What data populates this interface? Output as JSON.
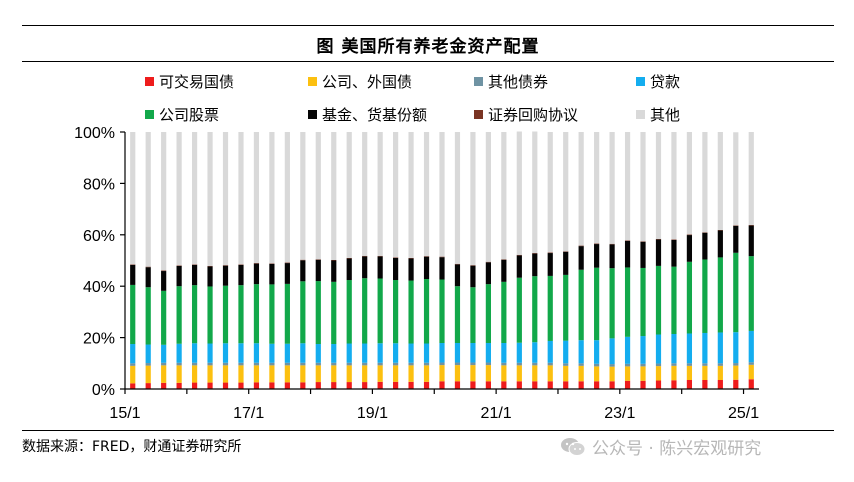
{
  "chart_data": {
    "type": "bar",
    "stacked": true,
    "title": "图  美国所有养老金资产配置",
    "x_tick_labels": [
      "15/1",
      "17/1",
      "19/1",
      "21/1",
      "23/1",
      "25/1"
    ],
    "y_tick_labels": [
      "0%",
      "20%",
      "40%",
      "60%",
      "80%",
      "100%"
    ],
    "ylim": [
      0,
      100
    ],
    "grid": false,
    "legend_position": "top",
    "colors": [
      "#ee1c1c",
      "#fcc010",
      "#6f93a3",
      "#14adef",
      "#12a84a",
      "#050505",
      "#7a3423",
      "#d9d9d9"
    ],
    "categories": [
      "15/1",
      "15/2",
      "15/3",
      "15/4",
      "16/1",
      "16/2",
      "16/3",
      "16/4",
      "17/1",
      "17/2",
      "17/3",
      "17/4",
      "18/1",
      "18/2",
      "18/3",
      "18/4",
      "19/1",
      "19/2",
      "19/3",
      "19/4",
      "20/1",
      "20/2",
      "20/3",
      "20/4",
      "21/1",
      "21/2",
      "21/3",
      "21/4",
      "22/1",
      "22/2",
      "22/3",
      "22/4",
      "23/1",
      "23/2",
      "23/3",
      "23/4",
      "24/1",
      "24/2",
      "24/3",
      "24/4",
      "25/1"
    ],
    "series": [
      {
        "name": "可交易国债",
        "values": [
          2.2,
          2.3,
          2.4,
          2.4,
          2.5,
          2.5,
          2.5,
          2.5,
          2.6,
          2.6,
          2.6,
          2.6,
          2.7,
          2.7,
          2.7,
          2.7,
          2.8,
          2.8,
          2.8,
          2.8,
          3.0,
          3.0,
          3.0,
          3.0,
          3.0,
          3.0,
          3.0,
          3.0,
          3.0,
          3.0,
          3.0,
          3.0,
          3.2,
          3.2,
          3.3,
          3.4,
          3.5,
          3.5,
          3.5,
          3.6,
          3.8
        ]
      },
      {
        "name": "公司、外国债",
        "values": [
          6.8,
          6.8,
          6.8,
          6.8,
          6.7,
          6.7,
          6.7,
          6.7,
          6.6,
          6.6,
          6.6,
          6.6,
          6.5,
          6.5,
          6.5,
          6.5,
          6.4,
          6.4,
          6.4,
          6.4,
          6.3,
          6.3,
          6.3,
          6.3,
          6.2,
          6.2,
          6.2,
          6.2,
          6.0,
          6.0,
          5.8,
          5.7,
          5.6,
          5.6,
          5.6,
          5.6,
          5.5,
          5.5,
          5.5,
          5.5,
          5.6
        ]
      },
      {
        "name": "其他债券",
        "values": [
          1.0,
          1.0,
          1.0,
          1.0,
          1.0,
          1.0,
          1.0,
          1.0,
          1.0,
          1.0,
          1.0,
          1.0,
          1.0,
          1.0,
          1.0,
          1.0,
          1.0,
          1.0,
          1.0,
          1.0,
          1.0,
          1.0,
          1.0,
          1.0,
          1.0,
          1.0,
          1.0,
          1.0,
          1.0,
          1.0,
          1.0,
          1.0,
          1.0,
          1.0,
          1.0,
          1.0,
          1.0,
          1.0,
          1.0,
          1.0,
          1.0
        ]
      },
      {
        "name": "贷款",
        "values": [
          7.5,
          7.2,
          7.0,
          7.4,
          7.6,
          7.5,
          7.6,
          7.6,
          7.6,
          7.4,
          7.4,
          7.6,
          7.3,
          7.3,
          7.5,
          7.5,
          7.6,
          7.6,
          7.5,
          7.5,
          7.6,
          7.6,
          7.6,
          7.6,
          7.7,
          7.8,
          8.0,
          8.5,
          8.8,
          9.0,
          9.2,
          10.0,
          10.5,
          10.8,
          11.3,
          11.4,
          11.6,
          11.8,
          12.0,
          12.0,
          12.2
        ]
      },
      {
        "name": "公司股票",
        "values": [
          23.0,
          22.3,
          21.0,
          22.4,
          22.6,
          22.2,
          22.4,
          22.6,
          23.0,
          23.1,
          23.3,
          24.1,
          24.5,
          24.2,
          24.7,
          25.4,
          25.2,
          24.6,
          24.5,
          25.1,
          24.7,
          22.1,
          21.7,
          22.9,
          23.8,
          25.3,
          25.7,
          25.3,
          25.6,
          27.4,
          28.2,
          27.3,
          27.0,
          26.5,
          26.7,
          26.2,
          27.9,
          28.6,
          29.2,
          30.9,
          29.1
        ]
      },
      {
        "name": "基金、货基份额",
        "values": [
          7.8,
          7.8,
          7.7,
          7.9,
          7.9,
          7.8,
          7.8,
          7.9,
          8.0,
          8.0,
          8.1,
          8.2,
          8.3,
          8.3,
          8.4,
          8.5,
          8.6,
          8.6,
          8.6,
          8.7,
          8.7,
          8.5,
          8.4,
          8.5,
          8.6,
          8.7,
          8.8,
          8.9,
          9.0,
          9.2,
          9.2,
          9.3,
          10.3,
          10.2,
          10.3,
          10.4,
          10.4,
          10.4,
          10.5,
          10.5,
          11.9
        ]
      },
      {
        "name": "证券回购协议",
        "values": [
          0.2,
          0.2,
          0.2,
          0.2,
          0.2,
          0.2,
          0.2,
          0.2,
          0.2,
          0.2,
          0.2,
          0.2,
          0.2,
          0.2,
          0.2,
          0.2,
          0.2,
          0.2,
          0.2,
          0.2,
          0.2,
          0.2,
          0.2,
          0.2,
          0.2,
          0.2,
          0.2,
          0.2,
          0.2,
          0.2,
          0.2,
          0.2,
          0.2,
          0.2,
          0.2,
          0.2,
          0.2,
          0.2,
          0.2,
          0.2,
          0.2
        ]
      },
      {
        "name": "其他",
        "values": [
          51.5,
          52.4,
          53.9,
          51.9,
          51.5,
          52.1,
          51.8,
          51.5,
          51.0,
          51.1,
          50.8,
          49.7,
          49.5,
          49.8,
          49.0,
          48.2,
          48.2,
          48.8,
          49.0,
          48.3,
          48.5,
          51.3,
          51.8,
          50.5,
          49.5,
          48.0,
          47.3,
          46.9,
          46.4,
          44.2,
          43.4,
          43.5,
          42.2,
          42.5,
          41.6,
          41.8,
          39.9,
          39.0,
          38.1,
          36.2,
          36.2
        ]
      }
    ]
  },
  "source": "数据来源：FRED，财通证券研究所",
  "watermark": "公众号 · 陈兴宏观研究",
  "watermark_icon": "wechat-icon"
}
